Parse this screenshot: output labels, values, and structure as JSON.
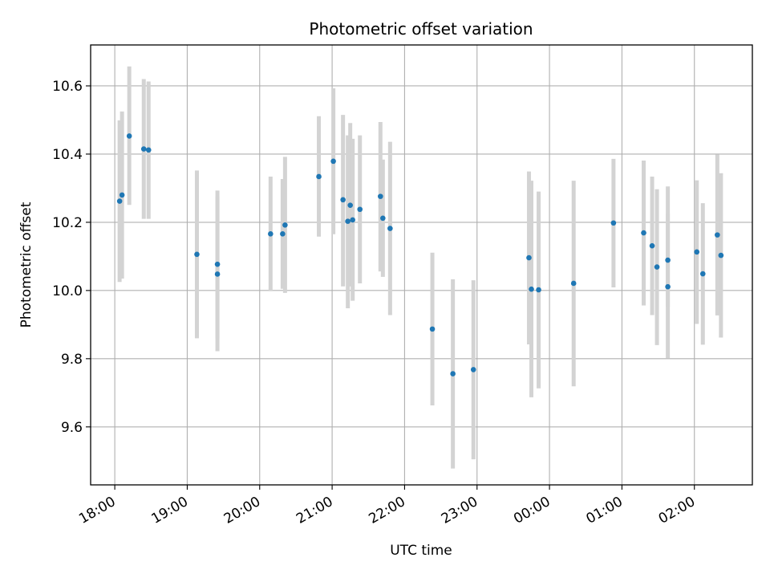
{
  "chart_data": {
    "type": "scatter",
    "title": "Photometric offset variation",
    "xlabel": "UTC time",
    "ylabel": "Photometric offset",
    "x_unit": "UTC time (HH:MM)",
    "x_range": [
      "17:40",
      "02:48"
    ],
    "ylim": [
      9.43,
      10.72
    ],
    "x_ticks": [
      "18:00",
      "19:00",
      "20:00",
      "21:00",
      "22:00",
      "23:00",
      "00:00",
      "01:00",
      "02:00"
    ],
    "y_ticks": [
      "9.6",
      "9.8",
      "10.0",
      "10.2",
      "10.4",
      "10.6"
    ],
    "grid": true,
    "marker_color": "#1f77b4",
    "errorbar_color": "#d3d3d3",
    "series": [
      {
        "points": [
          {
            "x": "18:04",
            "y": 10.262,
            "ylow": 10.025,
            "yhigh": 10.499
          },
          {
            "x": "18:06",
            "y": 10.28,
            "ylow": 10.035,
            "yhigh": 10.525
          },
          {
            "x": "18:12",
            "y": 10.453,
            "ylow": 10.251,
            "yhigh": 10.657
          },
          {
            "x": "18:24",
            "y": 10.415,
            "ylow": 10.21,
            "yhigh": 10.62
          },
          {
            "x": "18:28",
            "y": 10.412,
            "ylow": 10.21,
            "yhigh": 10.613
          },
          {
            "x": "19:08",
            "y": 10.106,
            "ylow": 9.86,
            "yhigh": 10.352
          },
          {
            "x": "19:25",
            "y": 10.077,
            "ylow": 9.86,
            "yhigh": 10.293
          },
          {
            "x": "19:25",
            "y": 10.048,
            "ylow": 9.822,
            "yhigh": 10.275
          },
          {
            "x": "20:09",
            "y": 10.166,
            "ylow": 9.998,
            "yhigh": 10.334
          },
          {
            "x": "20:19",
            "y": 10.166,
            "ylow": 10.005,
            "yhigh": 10.327
          },
          {
            "x": "20:21",
            "y": 10.192,
            "ylow": 9.993,
            "yhigh": 10.392
          },
          {
            "x": "20:49",
            "y": 10.334,
            "ylow": 10.158,
            "yhigh": 10.511
          },
          {
            "x": "21:01",
            "y": 10.379,
            "ylow": 10.165,
            "yhigh": 10.593
          },
          {
            "x": "21:09",
            "y": 10.266,
            "ylow": 10.012,
            "yhigh": 10.515
          },
          {
            "x": "21:13",
            "y": 10.203,
            "ylow": 9.948,
            "yhigh": 10.455
          },
          {
            "x": "21:15",
            "y": 10.25,
            "ylow": 10.012,
            "yhigh": 10.491
          },
          {
            "x": "21:17",
            "y": 10.207,
            "ylow": 9.97,
            "yhigh": 10.445
          },
          {
            "x": "21:23",
            "y": 10.238,
            "ylow": 10.021,
            "yhigh": 10.455
          },
          {
            "x": "21:40",
            "y": 10.276,
            "ylow": 10.056,
            "yhigh": 10.494
          },
          {
            "x": "21:42",
            "y": 10.212,
            "ylow": 10.04,
            "yhigh": 10.384
          },
          {
            "x": "21:48",
            "y": 10.182,
            "ylow": 9.928,
            "yhigh": 10.436
          },
          {
            "x": "22:23",
            "y": 9.887,
            "ylow": 9.663,
            "yhigh": 10.111
          },
          {
            "x": "22:40",
            "y": 9.756,
            "ylow": 9.478,
            "yhigh": 10.033
          },
          {
            "x": "22:57",
            "y": 9.768,
            "ylow": 9.505,
            "yhigh": 10.03
          },
          {
            "x": "23:43",
            "y": 10.096,
            "ylow": 9.842,
            "yhigh": 10.349
          },
          {
            "x": "23:45",
            "y": 10.004,
            "ylow": 9.687,
            "yhigh": 10.322
          },
          {
            "x": "23:51",
            "y": 10.002,
            "ylow": 9.713,
            "yhigh": 10.29
          },
          {
            "x": "00:20",
            "y": 10.021,
            "ylow": 9.719,
            "yhigh": 10.322
          },
          {
            "x": "00:53",
            "y": 10.198,
            "ylow": 10.009,
            "yhigh": 10.386
          },
          {
            "x": "01:18",
            "y": 10.169,
            "ylow": 9.956,
            "yhigh": 10.381
          },
          {
            "x": "01:25",
            "y": 10.131,
            "ylow": 9.928,
            "yhigh": 10.334
          },
          {
            "x": "01:29",
            "y": 10.069,
            "ylow": 9.84,
            "yhigh": 10.297
          },
          {
            "x": "01:38",
            "y": 10.089,
            "ylow": 9.953,
            "yhigh": 10.226
          },
          {
            "x": "01:38",
            "y": 10.011,
            "ylow": 9.801,
            "yhigh": 10.305
          },
          {
            "x": "02:02",
            "y": 10.113,
            "ylow": 9.902,
            "yhigh": 10.323
          },
          {
            "x": "02:07",
            "y": 10.049,
            "ylow": 9.841,
            "yhigh": 10.256
          },
          {
            "x": "02:19",
            "y": 10.163,
            "ylow": 9.927,
            "yhigh": 10.399
          },
          {
            "x": "02:22",
            "y": 10.103,
            "ylow": 9.862,
            "yhigh": 10.344
          }
        ]
      }
    ]
  }
}
